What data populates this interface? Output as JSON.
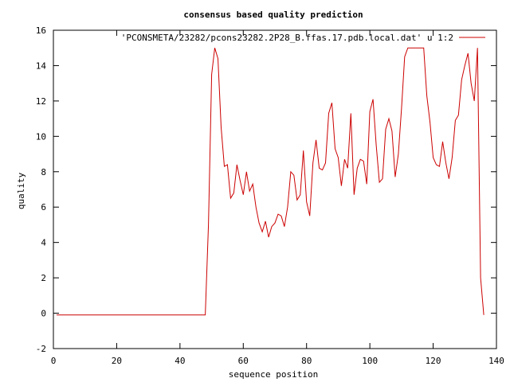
{
  "chart_data": {
    "type": "line",
    "title": "consensus based quality prediction",
    "xlabel": "sequence position",
    "ylabel": "quality",
    "xlim": [
      0,
      140
    ],
    "ylim": [
      -2,
      16
    ],
    "xticks": [
      0,
      20,
      40,
      60,
      80,
      100,
      120,
      140
    ],
    "yticks": [
      -2,
      0,
      2,
      4,
      6,
      8,
      10,
      12,
      14,
      16
    ],
    "grid": false,
    "legend_position": "top-right",
    "series": [
      {
        "name": "'PCONSMETA/23282/pcons23282.2P28_B.ffas.17.pdb.local.dat' u 1:2",
        "color": "#cc0000",
        "x": [
          1,
          48,
          49,
          50,
          51,
          52,
          53,
          54,
          55,
          56,
          57,
          58,
          59,
          60,
          61,
          62,
          63,
          64,
          65,
          66,
          67,
          68,
          69,
          70,
          71,
          72,
          73,
          74,
          75,
          76,
          77,
          78,
          79,
          80,
          81,
          82,
          83,
          84,
          85,
          86,
          87,
          88,
          89,
          90,
          91,
          92,
          93,
          94,
          95,
          96,
          97,
          98,
          99,
          100,
          101,
          102,
          103,
          104,
          105,
          106,
          107,
          108,
          109,
          110,
          111,
          112,
          113,
          114,
          115,
          116,
          117,
          118,
          119,
          120,
          121,
          122,
          123,
          124,
          125,
          126,
          127,
          128,
          129,
          130,
          131,
          132,
          133,
          134,
          135,
          136
        ],
        "y": [
          -0.1,
          -0.1,
          5.0,
          13.5,
          15.0,
          14.4,
          10.5,
          8.3,
          8.4,
          6.5,
          6.8,
          8.4,
          7.5,
          6.7,
          8.0,
          6.9,
          7.3,
          6.0,
          5.1,
          4.6,
          5.2,
          4.3,
          4.9,
          5.1,
          5.6,
          5.5,
          4.9,
          6.0,
          8.0,
          7.8,
          6.4,
          6.7,
          9.2,
          6.3,
          5.5,
          8.5,
          9.8,
          8.2,
          8.1,
          8.5,
          11.3,
          11.9,
          9.3,
          8.8,
          7.2,
          8.7,
          8.2,
          11.3,
          6.7,
          8.2,
          8.7,
          8.6,
          7.3,
          11.4,
          12.1,
          9.5,
          7.4,
          7.6,
          10.4,
          11.0,
          10.3,
          7.7,
          9.0,
          11.6,
          14.5,
          15.0,
          15.0,
          15.0,
          15.0,
          15.0,
          15.0,
          12.3,
          10.8,
          8.8,
          8.4,
          8.3,
          9.7,
          8.5,
          7.6,
          8.8,
          10.9,
          11.2,
          13.2,
          14.0,
          14.7,
          13.0,
          12.0,
          15.0,
          2.0,
          -0.1
        ]
      }
    ]
  }
}
